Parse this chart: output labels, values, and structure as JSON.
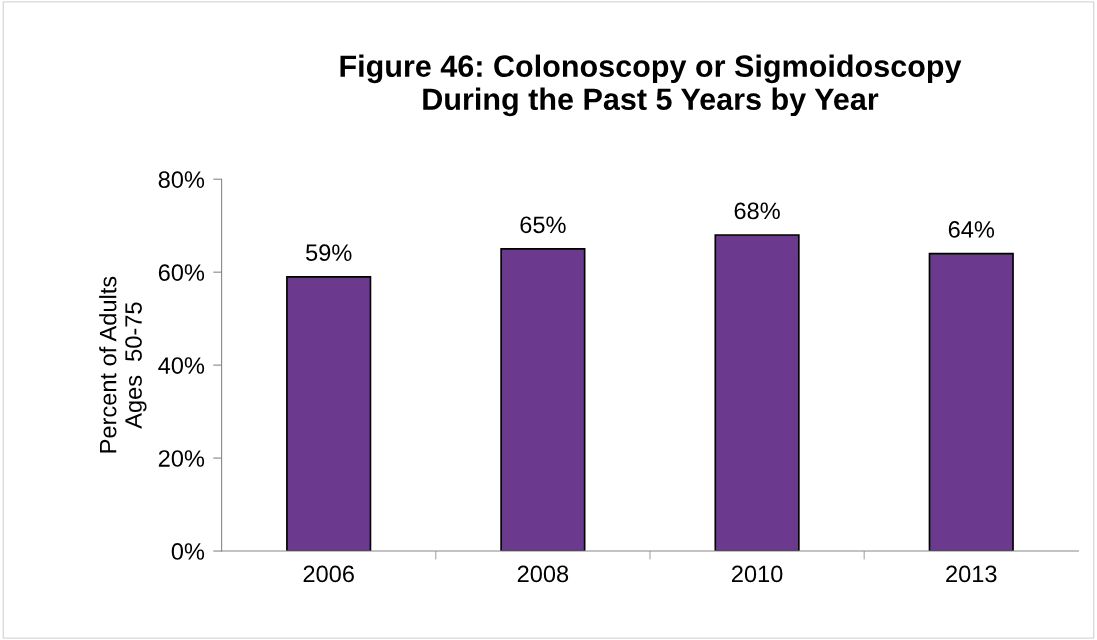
{
  "chart_data": {
    "type": "bar",
    "title": "Figure 46: Colonoscopy or Sigmoidoscopy\nDuring the Past 5 Years by Year",
    "ylabel": "Percent of Adults\nAges  50-75",
    "categories": [
      "2006",
      "2008",
      "2010",
      "2013"
    ],
    "values": [
      59,
      65,
      68,
      64
    ],
    "color": "#6b3a8f",
    "value_labels": [
      "59%",
      "65%",
      "68%",
      "64%"
    ],
    "ylim": [
      0,
      80
    ],
    "yticks": [
      {
        "value": 0,
        "label": "0%"
      },
      {
        "value": 20,
        "label": "20%"
      },
      {
        "value": 40,
        "label": "40%"
      },
      {
        "value": 60,
        "label": "60%"
      },
      {
        "value": 80,
        "label": "80%"
      }
    ],
    "grid": false,
    "legend": false
  }
}
